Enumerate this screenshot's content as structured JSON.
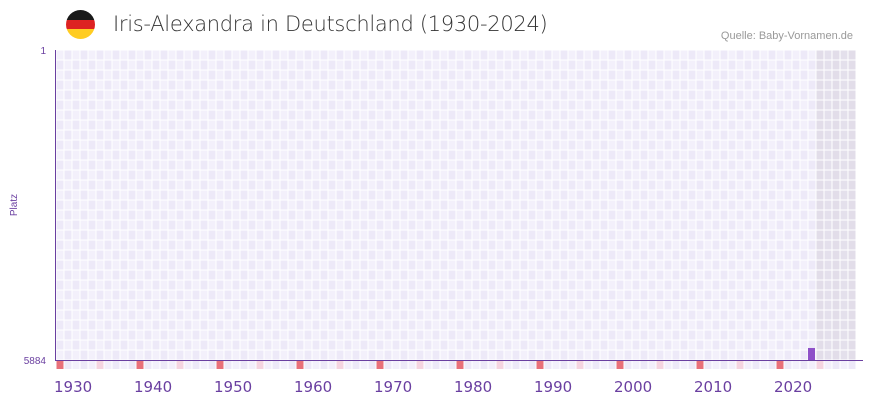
{
  "header": {
    "title": "Iris-Alexandra in Deutschland (1930-2024)",
    "source": "Quelle: Baby-Vornamen.de",
    "flag_colors": [
      "#1a1a1a",
      "#dd2222",
      "#ffcc22"
    ]
  },
  "chart_data": {
    "type": "bar",
    "title": "Iris-Alexandra in Deutschland (1930-2024)",
    "ylabel": "Platz",
    "xlabel": "",
    "ylim": [
      1,
      5884
    ],
    "y_inverted": true,
    "yticks": [
      "1",
      "5884"
    ],
    "xlim": [
      1930,
      2029
    ],
    "xticks": [
      "1930",
      "1940",
      "1950",
      "1960",
      "1970",
      "1980",
      "1990",
      "2000",
      "2010",
      "2020"
    ],
    "shaded_from_year": 2025,
    "series": [
      {
        "name": "Iris-Alexandra",
        "x": [
          2024
        ],
        "values": [
          5656
        ]
      }
    ],
    "colors": {
      "bar": "#8e50c8",
      "axis": "#6a3fa0",
      "decade": "#e8707a",
      "half": "#f5d5e0",
      "cell": "#ede9f8",
      "cell_alt": "#f3f0fb",
      "shade": "#e4e0ec"
    }
  }
}
